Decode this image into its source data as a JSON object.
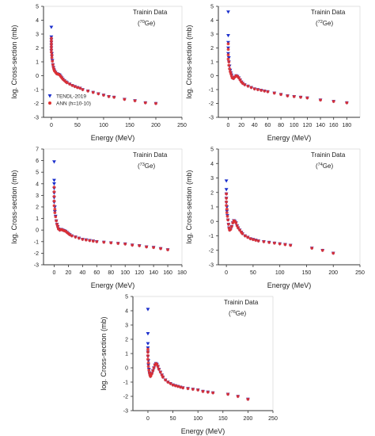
{
  "figure": {
    "panel_count": 5
  },
  "chart_data": [
    {
      "type": "scatter",
      "title": "Trainin Data",
      "subtitle": "(70Ge)",
      "isotope_mass": "70",
      "isotope_symbol": "Ge",
      "xlabel": "Energy (MeV)",
      "ylabel": "log. Cross-section (mb)",
      "xlim": [
        -15,
        250
      ],
      "ylim": [
        -3,
        5
      ],
      "xticks": [
        0,
        50,
        100,
        150,
        200,
        250
      ],
      "yticks": [
        -3,
        -2,
        -1,
        0,
        1,
        2,
        3,
        4,
        5
      ],
      "legend": {
        "placement": "bottom-left",
        "entries": [
          "TENDL-2019",
          "ANN (h=10-10)"
        ]
      },
      "series": [
        {
          "name": "TENDL-2019",
          "marker": "triangle-down",
          "color": "#1a2ecc",
          "x": [
            0,
            0,
            0,
            0,
            0,
            0,
            0,
            1,
            1,
            2,
            3,
            4,
            5,
            6,
            8,
            10,
            12,
            14,
            16,
            18,
            20,
            22,
            25,
            28,
            30,
            35,
            40,
            45,
            50,
            55,
            60,
            70,
            80,
            90,
            100,
            110,
            120,
            140,
            160,
            180,
            200
          ],
          "y": [
            3.5,
            2.8,
            2.6,
            2.4,
            2.2,
            2.0,
            1.8,
            1.6,
            1.4,
            1.1,
            0.8,
            0.6,
            0.45,
            0.35,
            0.25,
            0.15,
            0.12,
            0.1,
            0.05,
            -0.05,
            -0.15,
            -0.25,
            -0.35,
            -0.45,
            -0.5,
            -0.6,
            -0.7,
            -0.78,
            -0.85,
            -0.9,
            -1.0,
            -1.1,
            -1.2,
            -1.3,
            -1.4,
            -1.5,
            -1.55,
            -1.7,
            -1.8,
            -1.95,
            -2.0
          ]
        },
        {
          "name": "ANN (h=10-10)",
          "marker": "circle",
          "color": "#e03030",
          "x": [
            0,
            0,
            0,
            0,
            0,
            0,
            1,
            1,
            2,
            3,
            4,
            5,
            6,
            8,
            10,
            12,
            14,
            16,
            18,
            20,
            22,
            25,
            28,
            30,
            35,
            40,
            45,
            50,
            55,
            60,
            70,
            80,
            90,
            100,
            110,
            120,
            140,
            160,
            180,
            200
          ],
          "y": [
            2.7,
            2.5,
            2.3,
            2.1,
            1.9,
            1.7,
            1.5,
            1.3,
            1.05,
            0.8,
            0.6,
            0.45,
            0.35,
            0.25,
            0.15,
            0.12,
            0.1,
            0.05,
            -0.05,
            -0.15,
            -0.25,
            -0.35,
            -0.45,
            -0.5,
            -0.6,
            -0.7,
            -0.78,
            -0.85,
            -0.9,
            -1.0,
            -1.1,
            -1.2,
            -1.3,
            -1.4,
            -1.5,
            -1.55,
            -1.7,
            -1.8,
            -1.95,
            -2.0
          ]
        }
      ]
    },
    {
      "type": "scatter",
      "title": "Trainin Data",
      "subtitle": "(72Ge)",
      "isotope_mass": "72",
      "isotope_symbol": "Ge",
      "xlabel": "Energy (MeV)",
      "ylabel": "log. Cross-section (mb)",
      "xlim": [
        -15,
        200
      ],
      "ylim": [
        -3,
        5
      ],
      "xticks": [
        0,
        20,
        40,
        60,
        80,
        100,
        120,
        140,
        160,
        180
      ],
      "yticks": [
        -3,
        -2,
        -1,
        0,
        1,
        2,
        3,
        4,
        5
      ],
      "series": [
        {
          "name": "TENDL-2019",
          "marker": "triangle-down",
          "color": "#1a2ecc",
          "x": [
            0,
            0,
            0,
            0,
            0,
            1,
            1,
            2,
            3,
            4,
            5,
            6,
            8,
            10,
            12,
            14,
            16,
            18,
            20,
            22,
            25,
            30,
            35,
            40,
            45,
            50,
            55,
            60,
            70,
            80,
            90,
            100,
            110,
            120,
            140,
            160,
            180
          ],
          "y": [
            4.6,
            2.9,
            2.4,
            2.0,
            1.6,
            1.3,
            1.0,
            0.7,
            0.4,
            0.2,
            0.05,
            -0.15,
            -0.2,
            -0.1,
            0.0,
            -0.05,
            -0.15,
            -0.3,
            -0.45,
            -0.55,
            -0.65,
            -0.75,
            -0.85,
            -0.95,
            -1.0,
            -1.05,
            -1.1,
            -1.15,
            -1.25,
            -1.35,
            -1.45,
            -1.5,
            -1.55,
            -1.6,
            -1.75,
            -1.85,
            -1.95
          ]
        },
        {
          "name": "ANN (h=10-10)",
          "marker": "circle",
          "color": "#e03030",
          "x": [
            0,
            0,
            0,
            0,
            1,
            1,
            2,
            3,
            4,
            5,
            6,
            8,
            10,
            12,
            14,
            16,
            18,
            20,
            22,
            25,
            30,
            35,
            40,
            45,
            50,
            55,
            60,
            70,
            80,
            90,
            100,
            110,
            120,
            140,
            160,
            180
          ],
          "y": [
            2.3,
            1.9,
            1.5,
            1.2,
            1.0,
            0.75,
            0.5,
            0.3,
            0.15,
            0.0,
            -0.15,
            -0.2,
            -0.1,
            0.0,
            -0.05,
            -0.15,
            -0.3,
            -0.45,
            -0.55,
            -0.65,
            -0.75,
            -0.85,
            -0.95,
            -1.0,
            -1.05,
            -1.1,
            -1.15,
            -1.25,
            -1.35,
            -1.45,
            -1.5,
            -1.55,
            -1.6,
            -1.75,
            -1.85,
            -1.95
          ]
        }
      ]
    },
    {
      "type": "scatter",
      "title": "Trainin Data",
      "subtitle": "(73Ge)",
      "isotope_mass": "73",
      "isotope_symbol": "Ge",
      "xlabel": "Energy (MeV)",
      "ylabel": "log. Cross-section (mb)",
      "xlim": [
        -15,
        180
      ],
      "ylim": [
        -3,
        7
      ],
      "xticks": [
        0,
        20,
        40,
        60,
        80,
        100,
        120,
        140,
        160,
        180
      ],
      "yticks": [
        -3,
        -2,
        -1,
        0,
        1,
        2,
        3,
        4,
        5,
        6,
        7
      ],
      "series": [
        {
          "name": "TENDL-2019",
          "marker": "triangle-down",
          "color": "#1a2ecc",
          "x": [
            0,
            0,
            0,
            0,
            0,
            0,
            0,
            1,
            1,
            2,
            3,
            4,
            5,
            6,
            8,
            10,
            12,
            14,
            16,
            18,
            20,
            22,
            25,
            30,
            35,
            40,
            45,
            50,
            55,
            60,
            70,
            80,
            90,
            100,
            110,
            120,
            130,
            140,
            150,
            160
          ],
          "y": [
            5.9,
            4.3,
            4.0,
            3.6,
            3.2,
            2.8,
            2.4,
            2.0,
            1.6,
            1.2,
            0.8,
            0.5,
            0.3,
            0.1,
            0.0,
            0.05,
            0.0,
            -0.05,
            -0.1,
            -0.2,
            -0.3,
            -0.4,
            -0.5,
            -0.6,
            -0.7,
            -0.8,
            -0.85,
            -0.9,
            -0.95,
            -1.0,
            -1.05,
            -1.1,
            -1.15,
            -1.2,
            -1.3,
            -1.35,
            -1.45,
            -1.5,
            -1.6,
            -1.7
          ]
        },
        {
          "name": "ANN (h=10-10)",
          "marker": "circle",
          "color": "#e03030",
          "x": [
            0,
            0,
            0,
            0,
            0,
            1,
            1,
            2,
            3,
            4,
            5,
            6,
            8,
            10,
            12,
            14,
            16,
            18,
            20,
            22,
            25,
            30,
            35,
            40,
            45,
            50,
            55,
            60,
            70,
            80,
            90,
            100,
            110,
            120,
            130,
            140,
            150,
            160
          ],
          "y": [
            3.7,
            3.3,
            2.9,
            2.5,
            2.1,
            1.8,
            1.5,
            1.15,
            0.8,
            0.5,
            0.3,
            0.1,
            0.0,
            0.05,
            0.0,
            -0.05,
            -0.1,
            -0.2,
            -0.3,
            -0.4,
            -0.5,
            -0.6,
            -0.7,
            -0.8,
            -0.85,
            -0.9,
            -0.95,
            -1.0,
            -1.05,
            -1.1,
            -1.15,
            -1.2,
            -1.3,
            -1.35,
            -1.45,
            -1.5,
            -1.6,
            -1.7
          ]
        }
      ]
    },
    {
      "type": "scatter",
      "title": "Trainin Data",
      "subtitle": "(74Ge)",
      "isotope_mass": "74",
      "isotope_symbol": "Ge",
      "xlabel": "Energy (MeV)",
      "ylabel": "log. Cross-section (mb)",
      "xlim": [
        -15,
        250
      ],
      "ylim": [
        -3,
        5
      ],
      "xticks": [
        0,
        50,
        100,
        150,
        200,
        250
      ],
      "yticks": [
        -3,
        -2,
        -1,
        0,
        1,
        2,
        3,
        4,
        5
      ],
      "series": [
        {
          "name": "TENDL-2019",
          "marker": "triangle-down",
          "color": "#1a2ecc",
          "x": [
            0,
            0,
            0,
            0,
            0,
            1,
            1,
            2,
            3,
            4,
            5,
            6,
            8,
            10,
            12,
            14,
            16,
            18,
            20,
            22,
            25,
            28,
            30,
            35,
            40,
            45,
            50,
            55,
            60,
            70,
            80,
            90,
            100,
            110,
            120,
            160,
            180,
            200
          ],
          "y": [
            2.8,
            2.2,
            1.9,
            1.6,
            1.3,
            1.0,
            0.7,
            0.4,
            0.1,
            -0.2,
            -0.45,
            -0.6,
            -0.55,
            -0.35,
            -0.1,
            0.05,
            0.0,
            -0.1,
            -0.3,
            -0.45,
            -0.6,
            -0.75,
            -0.85,
            -1.0,
            -1.1,
            -1.2,
            -1.25,
            -1.3,
            -1.35,
            -1.4,
            -1.45,
            -1.5,
            -1.55,
            -1.6,
            -1.65,
            -1.85,
            -2.0,
            -2.2
          ]
        },
        {
          "name": "ANN (h=10-10)",
          "marker": "circle",
          "color": "#e03030",
          "x": [
            0,
            0,
            0,
            0,
            1,
            1,
            2,
            3,
            4,
            5,
            6,
            8,
            10,
            12,
            14,
            16,
            18,
            20,
            22,
            25,
            28,
            30,
            35,
            40,
            45,
            50,
            55,
            60,
            70,
            80,
            90,
            100,
            110,
            120,
            160,
            180,
            200
          ],
          "y": [
            1.9,
            1.6,
            1.35,
            1.1,
            0.85,
            0.6,
            0.35,
            0.1,
            -0.2,
            -0.45,
            -0.6,
            -0.55,
            -0.35,
            -0.1,
            0.05,
            0.0,
            -0.1,
            -0.3,
            -0.45,
            -0.6,
            -0.75,
            -0.85,
            -1.0,
            -1.1,
            -1.2,
            -1.25,
            -1.3,
            -1.35,
            -1.4,
            -1.45,
            -1.5,
            -1.55,
            -1.6,
            -1.65,
            -1.85,
            -2.0,
            -2.2
          ]
        }
      ]
    },
    {
      "type": "scatter",
      "title": "Trainin Data",
      "subtitle": "(76Ge)",
      "isotope_mass": "76",
      "isotope_symbol": "Ge",
      "xlabel": "Energy (MeV)",
      "ylabel": "log. Cross-section (mb)",
      "xlim": [
        -30,
        250
      ],
      "ylim": [
        -3,
        5
      ],
      "xticks": [
        0,
        50,
        100,
        150,
        200,
        250
      ],
      "yticks": [
        -3,
        -2,
        -1,
        0,
        1,
        2,
        3,
        4,
        5
      ],
      "series": [
        {
          "name": "TENDL-2019",
          "marker": "triangle-down",
          "color": "#1a2ecc",
          "x": [
            0,
            0,
            0,
            0,
            0,
            0,
            1,
            1,
            2,
            3,
            4,
            5,
            6,
            8,
            10,
            12,
            14,
            16,
            18,
            20,
            22,
            25,
            28,
            30,
            35,
            40,
            45,
            50,
            55,
            60,
            65,
            70,
            80,
            90,
            100,
            110,
            120,
            130,
            160,
            180,
            200
          ],
          "y": [
            4.1,
            2.4,
            1.7,
            1.4,
            1.1,
            0.8,
            0.5,
            0.2,
            -0.1,
            -0.35,
            -0.5,
            -0.6,
            -0.55,
            -0.4,
            -0.2,
            0.0,
            0.2,
            0.3,
            0.25,
            0.1,
            -0.1,
            -0.3,
            -0.5,
            -0.65,
            -0.85,
            -1.0,
            -1.1,
            -1.2,
            -1.25,
            -1.3,
            -1.35,
            -1.4,
            -1.45,
            -1.5,
            -1.55,
            -1.65,
            -1.7,
            -1.75,
            -1.85,
            -2.0,
            -2.2
          ]
        },
        {
          "name": "ANN (h=10-10)",
          "marker": "circle",
          "color": "#e03030",
          "x": [
            0,
            0,
            0,
            0,
            1,
            1,
            2,
            3,
            4,
            5,
            6,
            8,
            10,
            12,
            14,
            16,
            18,
            20,
            22,
            25,
            28,
            30,
            35,
            40,
            45,
            50,
            55,
            60,
            65,
            70,
            80,
            90,
            100,
            110,
            120,
            130,
            160,
            180,
            200
          ],
          "y": [
            1.3,
            1.1,
            0.85,
            0.6,
            0.35,
            0.1,
            -0.15,
            -0.35,
            -0.5,
            -0.6,
            -0.55,
            -0.4,
            -0.2,
            0.0,
            0.2,
            0.3,
            0.25,
            0.1,
            -0.1,
            -0.3,
            -0.5,
            -0.65,
            -0.85,
            -1.0,
            -1.1,
            -1.2,
            -1.25,
            -1.3,
            -1.35,
            -1.4,
            -1.45,
            -1.5,
            -1.55,
            -1.65,
            -1.7,
            -1.75,
            -1.85,
            -2.0,
            -2.2
          ]
        }
      ]
    }
  ]
}
